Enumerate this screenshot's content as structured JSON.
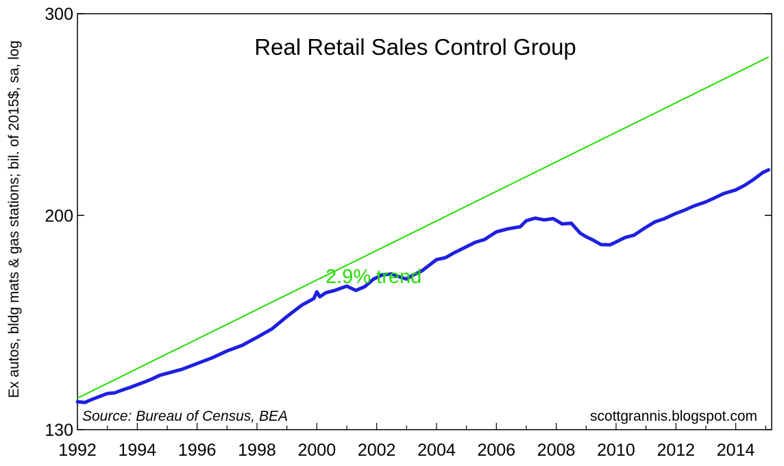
{
  "chart_data": {
    "type": "line",
    "title": "Real Retail Sales Control Group",
    "ylabel": "Ex autos, bldg mats & gas stations; bil. of 2015$, sa, log",
    "xlabel": "",
    "yscale": "log",
    "ylim": [
      130,
      300
    ],
    "xlim": [
      1992,
      2015.2
    ],
    "y_ticks": [
      130,
      200,
      300
    ],
    "y_tick_labels": [
      "130",
      "200",
      "300"
    ],
    "x_ticks": [
      1992,
      1994,
      1996,
      1998,
      2000,
      2002,
      2004,
      2006,
      2008,
      2010,
      2012,
      2014
    ],
    "x_tick_labels": [
      "1992",
      "1994",
      "1996",
      "1998",
      "2000",
      "2002",
      "2004",
      "2006",
      "2008",
      "2010",
      "2012",
      "2014"
    ],
    "source_note": "Source:  Bureau of Census, BEA",
    "credit": "scottgrannis.blogspot.com",
    "annotation": "2.9% trend",
    "colors": {
      "actual": "#1f1fe0",
      "trend": "#22dd00",
      "trend_label": "#22dd00",
      "axis": "#000000"
    },
    "series": [
      {
        "name": "Real Retail Sales Control Group",
        "x": [
          1992.0,
          1992.25,
          1992.5,
          1992.75,
          1993.0,
          1993.25,
          1993.5,
          1993.75,
          1994.0,
          1994.25,
          1994.5,
          1994.75,
          1995.0,
          1995.5,
          1996.0,
          1996.5,
          1997.0,
          1997.5,
          1998.0,
          1998.5,
          1999.0,
          1999.5,
          1999.9,
          2000.0,
          2000.1,
          2000.3,
          2000.6,
          2001.0,
          2001.3,
          2001.6,
          2001.9,
          2002.2,
          2002.5,
          2002.8,
          2003.0,
          2003.2,
          2003.5,
          2003.8,
          2004.0,
          2004.3,
          2004.6,
          2005.0,
          2005.3,
          2005.6,
          2006.0,
          2006.4,
          2006.8,
          2007.0,
          2007.3,
          2007.6,
          2007.9,
          2008.2,
          2008.5,
          2008.8,
          2009.0,
          2009.2,
          2009.5,
          2009.8,
          2010.0,
          2010.3,
          2010.6,
          2011.0,
          2011.3,
          2011.6,
          2012.0,
          2012.3,
          2012.6,
          2013.0,
          2013.3,
          2013.6,
          2014.0,
          2014.3,
          2014.6,
          2014.9,
          2015.1
        ],
        "values": [
          137.5,
          137.3,
          138.2,
          139.0,
          139.8,
          140.0,
          140.8,
          141.5,
          142.3,
          143.1,
          144.0,
          145.0,
          145.6,
          146.8,
          148.5,
          150.2,
          152.3,
          154.0,
          156.5,
          159.2,
          163.2,
          167.0,
          169.2,
          171.5,
          169.8,
          171.2,
          172.0,
          173.5,
          172.0,
          173.3,
          176.0,
          177.5,
          177.8,
          176.6,
          176.0,
          177.3,
          178.8,
          181.3,
          183.0,
          183.7,
          185.6,
          187.8,
          189.5,
          190.5,
          193.5,
          194.7,
          195.5,
          197.9,
          198.9,
          198.2,
          198.7,
          196.6,
          196.9,
          193.0,
          191.6,
          190.5,
          188.6,
          188.5,
          189.6,
          191.3,
          192.2,
          195.3,
          197.4,
          198.6,
          200.8,
          202.2,
          203.8,
          205.5,
          207.2,
          209.0,
          210.5,
          212.5,
          215.0,
          218.0,
          219.2
        ]
      },
      {
        "name": "2.9% trend",
        "x": [
          1992.0,
          2015.1
        ],
        "values": [
          138.5,
          275.0
        ]
      }
    ]
  }
}
